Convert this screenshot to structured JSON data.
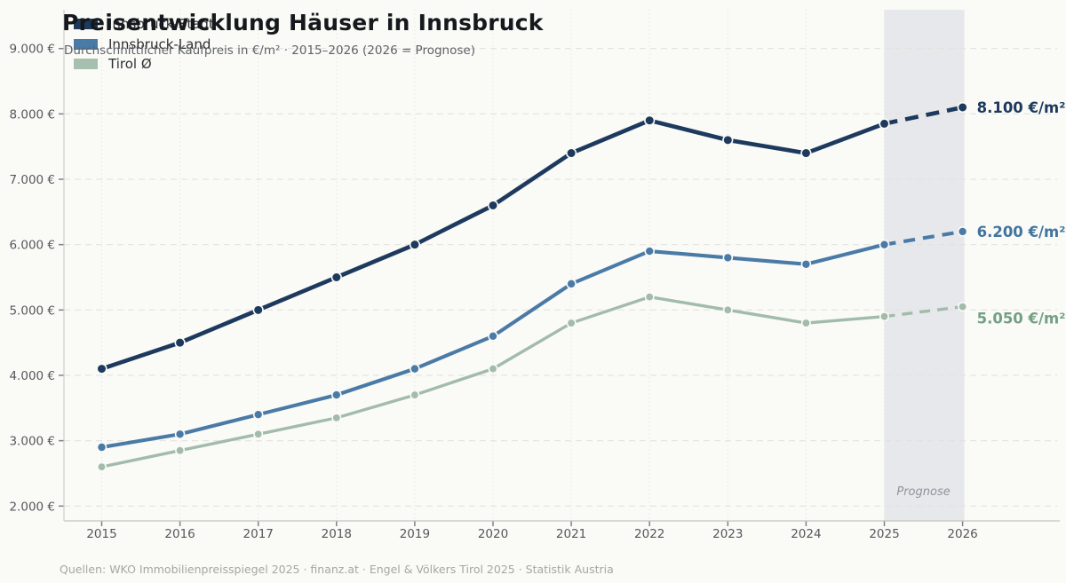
{
  "header": {
    "title": "Preisentwicklung Häuser in Innsbruck",
    "subtitle": "Durchschnittlicher Kaufpreis in €/m² · 2015–2026 (2026 = Prognose)"
  },
  "legend": [
    {
      "label": "Innsbruck-Stadt",
      "color": "#1d3a5e"
    },
    {
      "label": "Innsbruck-Land",
      "color": "#4a7aa6"
    },
    {
      "label": "Tirol Ø",
      "color": "#a7bfae"
    }
  ],
  "footer": {
    "text": "Quellen: WKO Immobilienpreisspiegel 2025 · finanz.at · Engel & Völkers Tirol 2025 · Statistik Austria"
  },
  "chart_data": {
    "type": "line",
    "title": "Preisentwicklung Häuser in Innsbruck",
    "subtitle": "Durchschnittlicher Kaufpreis in €/m² · 2015–2026 (2026 = Prognose)",
    "x": [
      2015,
      2016,
      2017,
      2018,
      2019,
      2020,
      2021,
      2022,
      2023,
      2024,
      2025,
      2026
    ],
    "series": [
      {
        "name": "Innsbruck-Stadt",
        "color": "#1d3a5e",
        "label_color": "#1d3a5e",
        "values": [
          4100,
          4500,
          5000,
          5500,
          6000,
          6600,
          7400,
          7900,
          7600,
          7400,
          7850,
          8100
        ],
        "end_label": "8.100 €/m²"
      },
      {
        "name": "Innsbruck-Land",
        "color": "#4a7aa6",
        "label_color": "#41749f",
        "values": [
          2900,
          3100,
          3400,
          3700,
          4100,
          4600,
          5400,
          5900,
          5800,
          5700,
          6000,
          6200
        ],
        "end_label": "6.200 €/m²"
      },
      {
        "name": "Tirol Ø",
        "color": "#a2bbaa",
        "label_color": "#73a083",
        "values": [
          2600,
          2850,
          3100,
          3350,
          3700,
          4100,
          4800,
          5200,
          5000,
          4800,
          4900,
          5050
        ],
        "end_label": "5.050 €/m²"
      }
    ],
    "yticks": [
      {
        "value": 2000,
        "label": "2.000 €"
      },
      {
        "value": 3000,
        "label": "3.000 €"
      },
      {
        "value": 4000,
        "label": "4.000 €"
      },
      {
        "value": 5000,
        "label": "5.000 €"
      },
      {
        "value": 6000,
        "label": "6.000 €"
      },
      {
        "value": 7000,
        "label": "7.000 €"
      },
      {
        "value": 8000,
        "label": "8.000 €"
      },
      {
        "value": 9000,
        "label": "9.000 €"
      }
    ],
    "ylim": [
      1800,
      9600
    ],
    "grid": true,
    "legend_position": "top-left",
    "forecast": {
      "from": 2025,
      "to": 2026,
      "label": "Prognose",
      "band_color": "#e7e8eb",
      "dashed": true
    }
  }
}
